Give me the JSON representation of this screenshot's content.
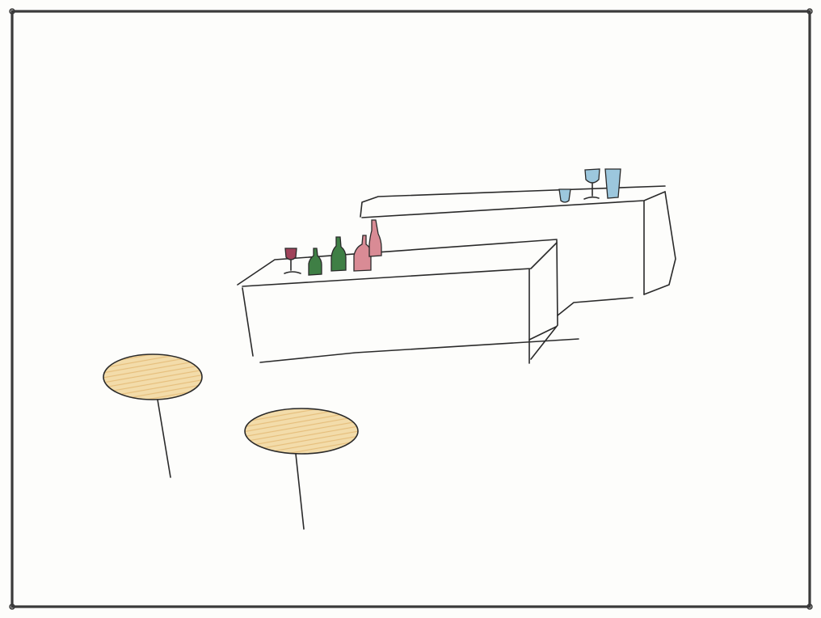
{
  "scene": {
    "description_elements": [
      "bar-counter",
      "back-bar-counter",
      "bottles",
      "glasses",
      "round-tables"
    ],
    "palette": {
      "ink": "#2a2a2a",
      "frame": "#3a3a3a",
      "paper": "#fdfdfb",
      "wine_red": "#a0435a",
      "rose_pink": "#d98b95",
      "bottle_green": "#3f7f45",
      "glass_blue": "#9cc7dd",
      "table_wood": "#f0d7a4",
      "table_wood_shade": "#e7c383"
    },
    "bottles": [
      {
        "name": "wine-glass-red",
        "color": "wine_red"
      },
      {
        "name": "green-bottle-small",
        "color": "bottle_green"
      },
      {
        "name": "green-bottle-tall",
        "color": "bottle_green"
      },
      {
        "name": "pink-bottle",
        "color": "rose_pink"
      },
      {
        "name": "pink-bottle-tall",
        "color": "rose_pink"
      }
    ],
    "glasses": [
      {
        "name": "tumbler-blue",
        "color": "glass_blue"
      },
      {
        "name": "wine-glass-blue",
        "color": "glass_blue"
      },
      {
        "name": "pint-glass-blue",
        "color": "glass_blue"
      }
    ],
    "tables": [
      {
        "name": "round-table-left"
      },
      {
        "name": "round-table-right"
      }
    ]
  }
}
